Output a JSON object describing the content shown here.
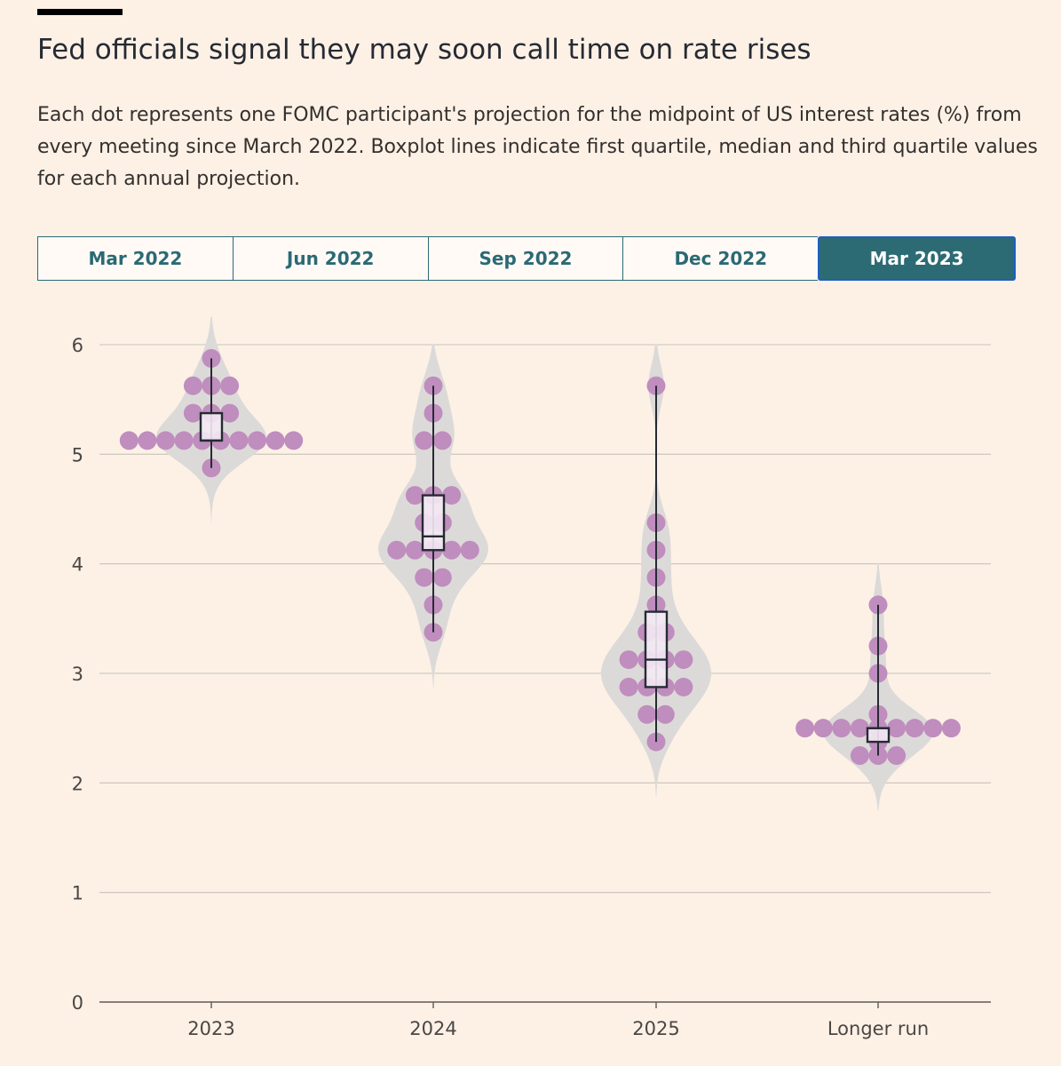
{
  "header": {
    "title": "Fed officials signal they may soon call time on rate rises",
    "subtitle": "Each dot represents one FOMC participant's projection for the midpoint of US interest rates (%) from every meeting since March 2022. Boxplot lines indicate first quartile, median and third quartile values for each annual projection."
  },
  "tabs": [
    {
      "label": "Mar 2022",
      "active": false
    },
    {
      "label": "Jun 2022",
      "active": false
    },
    {
      "label": "Sep 2022",
      "active": false
    },
    {
      "label": "Dec 2022",
      "active": false
    },
    {
      "label": "Mar 2023",
      "active": true
    }
  ],
  "colors": {
    "dot": "#bf8dbe",
    "violin": "#dcdad8",
    "box_fill": "#f3e9f4",
    "box_stroke": "#262a33",
    "grid": "#c8c2bb",
    "active_tab": "#2c6b74"
  },
  "chart_data": {
    "type": "violin-dot",
    "title": "",
    "xlabel": "",
    "ylabel": "",
    "ylim": [
      0,
      6
    ],
    "yticks": [
      0,
      1,
      2,
      3,
      4,
      5,
      6
    ],
    "grid": true,
    "categories": [
      "2023",
      "2024",
      "2025",
      "Longer run"
    ],
    "series": [
      {
        "category": "2023",
        "dots": [
          5.125,
          5.125,
          5.125,
          5.125,
          5.125,
          5.125,
          5.125,
          5.125,
          5.125,
          5.125,
          5.375,
          5.375,
          5.375,
          5.625,
          5.625,
          5.625,
          5.875,
          4.875
        ],
        "q1": 5.125,
        "median": 5.125,
        "q3": 5.375,
        "min": 4.875,
        "max": 5.875
      },
      {
        "category": "2024",
        "dots": [
          5.625,
          5.375,
          5.125,
          5.125,
          4.625,
          4.625,
          4.625,
          4.375,
          4.375,
          4.125,
          4.125,
          4.125,
          4.125,
          4.125,
          3.875,
          3.875,
          3.625,
          3.375
        ],
        "q1": 4.125,
        "median": 4.25,
        "q3": 4.625,
        "min": 3.375,
        "max": 5.625
      },
      {
        "category": "2025",
        "dots": [
          5.625,
          4.375,
          4.125,
          3.875,
          3.625,
          3.375,
          3.375,
          3.125,
          3.125,
          3.125,
          3.125,
          2.875,
          2.875,
          2.875,
          2.875,
          2.625,
          2.625,
          2.375
        ],
        "q1": 2.875,
        "median": 3.125,
        "q3": 3.5625,
        "min": 2.375,
        "max": 5.625
      },
      {
        "category": "Longer run",
        "dots": [
          3.625,
          3.25,
          3.0,
          2.625,
          2.5,
          2.5,
          2.5,
          2.5,
          2.5,
          2.5,
          2.5,
          2.5,
          2.5,
          2.375,
          2.25,
          2.25,
          2.25
        ],
        "q1": 2.375,
        "median": 2.5,
        "q3": 2.5,
        "min": 2.25,
        "max": 3.625
      }
    ]
  }
}
